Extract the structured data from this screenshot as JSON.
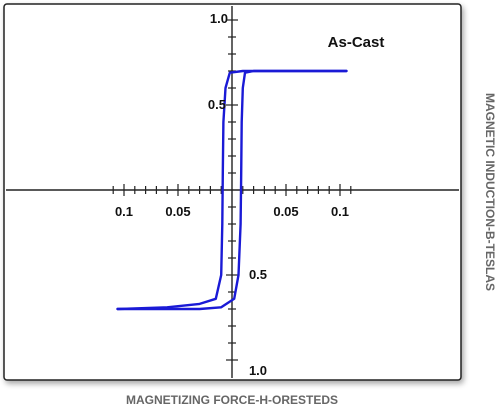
{
  "chart_data": {
    "type": "line",
    "xlabel": "MAGNETIZING FORCE-H-ORESTEDS",
    "ylabel": "MAGNETIC INDUCTION-B-TESLAS",
    "annotation": "As-Cast",
    "xlim": [
      -0.115,
      0.115
    ],
    "ylim": [
      -1.1,
      1.1
    ],
    "x_tick_labels": [
      {
        "value": -0.1,
        "label": "0.1"
      },
      {
        "value": -0.05,
        "label": "0.05"
      },
      {
        "value": 0.05,
        "label": "0.05"
      },
      {
        "value": 0.1,
        "label": "0.1"
      }
    ],
    "y_tick_labels": [
      {
        "value": 1.0,
        "label": "1.0"
      },
      {
        "value": 0.5,
        "label": "0.5"
      },
      {
        "value": -0.5,
        "label": "0.5"
      },
      {
        "value": -1.0,
        "label": "1.0"
      }
    ],
    "series": [
      {
        "color": "#1a1ad6",
        "x": [
          0.106,
          0.02,
          0.012,
          0.01,
          0.009,
          0.0085,
          0.008,
          0.006,
          0.002,
          -0.01,
          -0.03,
          -0.06,
          -0.09,
          -0.106
        ],
        "y": [
          0.7,
          0.7,
          0.69,
          0.6,
          0.4,
          0.1,
          -0.2,
          -0.5,
          -0.64,
          -0.69,
          -0.7,
          -0.7,
          -0.7,
          -0.7
        ]
      },
      {
        "color": "#1a1ad6",
        "x": [
          -0.106,
          -0.06,
          -0.03,
          -0.015,
          -0.01,
          -0.009,
          -0.0085,
          -0.008,
          -0.006,
          -0.002,
          0.01,
          0.02,
          0.05,
          0.106
        ],
        "y": [
          -0.7,
          -0.69,
          -0.67,
          -0.64,
          -0.5,
          -0.2,
          0.1,
          0.4,
          0.6,
          0.69,
          0.7,
          0.7,
          0.7,
          0.7
        ]
      }
    ]
  }
}
